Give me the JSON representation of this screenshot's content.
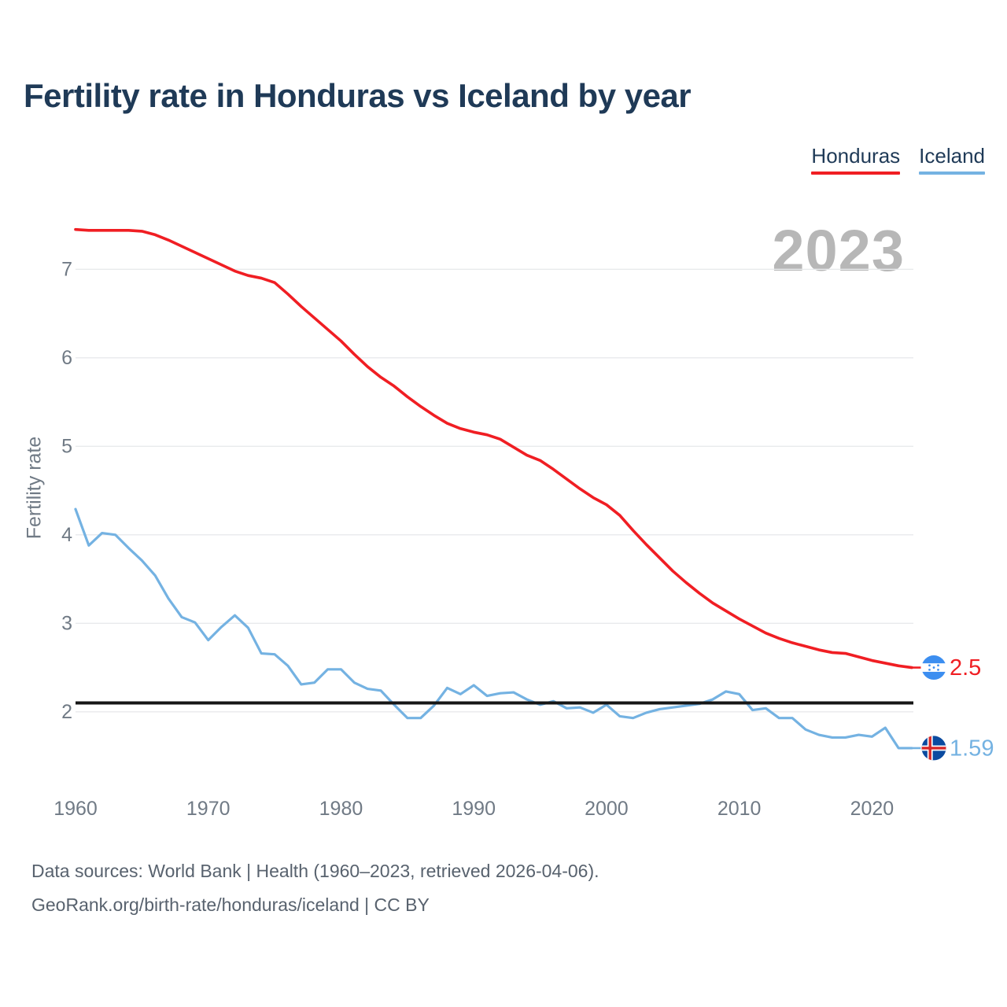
{
  "title": "Fertility rate in Honduras vs Iceland by year",
  "watermark": "2023",
  "legend": [
    {
      "label": "Honduras",
      "color": "#f01e23"
    },
    {
      "label": "Iceland",
      "color": "#74b2e2"
    }
  ],
  "y_axis": {
    "label": "Fertility rate",
    "ticks": [
      2,
      3,
      4,
      5,
      6,
      7
    ]
  },
  "x_axis": {
    "ticks": [
      1960,
      1970,
      1980,
      1990,
      2000,
      2010,
      2020
    ]
  },
  "reference_line": {
    "value": 2.1,
    "color": "#161616"
  },
  "end_labels": [
    {
      "series": "Honduras",
      "text": "2.5",
      "color": "#f01e23",
      "flag": "honduras"
    },
    {
      "series": "Iceland",
      "text": "1.59",
      "color": "#74b2e2",
      "flag": "iceland"
    }
  ],
  "flag_colors": {
    "honduras_blue": "#3c8ef0",
    "honduras_white": "#ffffff",
    "iceland_blue": "#0b4ba0",
    "iceland_red": "#d72828",
    "iceland_white": "#ffffff"
  },
  "footer": {
    "line1": "Data sources: World Bank | Health (1960–2023, retrieved 2026-04-06).",
    "line2": "GeoRank.org/birth-rate/honduras/iceland | CC BY"
  },
  "chart_data": {
    "type": "line",
    "title": "Fertility rate in Honduras vs Iceland by year",
    "xlabel": "",
    "ylabel": "Fertility rate",
    "ylim": [
      1.3,
      7.8
    ],
    "xlim": [
      1960,
      2023
    ],
    "grid": "horizontal",
    "legend_position": "top-right",
    "x": [
      1960,
      1961,
      1962,
      1963,
      1964,
      1965,
      1966,
      1967,
      1968,
      1969,
      1970,
      1971,
      1972,
      1973,
      1974,
      1975,
      1976,
      1977,
      1978,
      1979,
      1980,
      1981,
      1982,
      1983,
      1984,
      1985,
      1986,
      1987,
      1988,
      1989,
      1990,
      1991,
      1992,
      1993,
      1994,
      1995,
      1996,
      1997,
      1998,
      1999,
      2000,
      2001,
      2002,
      2003,
      2004,
      2005,
      2006,
      2007,
      2008,
      2009,
      2010,
      2011,
      2012,
      2013,
      2014,
      2015,
      2016,
      2017,
      2018,
      2019,
      2020,
      2021,
      2022,
      2023
    ],
    "series": [
      {
        "name": "Honduras",
        "color": "#f01e23",
        "final_value": 2.5,
        "values": [
          7.45,
          7.44,
          7.44,
          7.44,
          7.44,
          7.43,
          7.39,
          7.33,
          7.26,
          7.19,
          7.12,
          7.05,
          6.98,
          6.93,
          6.9,
          6.85,
          6.72,
          6.58,
          6.45,
          6.32,
          6.19,
          6.04,
          5.9,
          5.78,
          5.68,
          5.56,
          5.45,
          5.35,
          5.26,
          5.2,
          5.16,
          5.13,
          5.08,
          4.99,
          4.9,
          4.84,
          4.74,
          4.63,
          4.52,
          4.42,
          4.34,
          4.22,
          4.05,
          3.89,
          3.74,
          3.59,
          3.46,
          3.34,
          3.23,
          3.14,
          3.05,
          2.97,
          2.89,
          2.83,
          2.78,
          2.74,
          2.7,
          2.67,
          2.66,
          2.62,
          2.58,
          2.55,
          2.52,
          2.5
        ]
      },
      {
        "name": "Iceland",
        "color": "#74b2e2",
        "final_value": 1.59,
        "values": [
          4.29,
          3.88,
          4.02,
          4.0,
          3.85,
          3.71,
          3.54,
          3.28,
          3.07,
          3.01,
          2.81,
          2.96,
          3.09,
          2.95,
          2.66,
          2.65,
          2.52,
          2.31,
          2.33,
          2.48,
          2.48,
          2.33,
          2.26,
          2.24,
          2.08,
          1.93,
          1.93,
          2.07,
          2.27,
          2.2,
          2.3,
          2.18,
          2.21,
          2.22,
          2.14,
          2.08,
          2.12,
          2.04,
          2.05,
          1.99,
          2.08,
          1.95,
          1.93,
          1.99,
          2.03,
          2.05,
          2.07,
          2.09,
          2.14,
          2.23,
          2.2,
          2.02,
          2.04,
          1.93,
          1.93,
          1.8,
          1.74,
          1.71,
          1.71,
          1.74,
          1.72,
          1.82,
          1.59,
          1.59
        ]
      }
    ],
    "reference_line": {
      "value": 2.1,
      "label": ""
    }
  }
}
